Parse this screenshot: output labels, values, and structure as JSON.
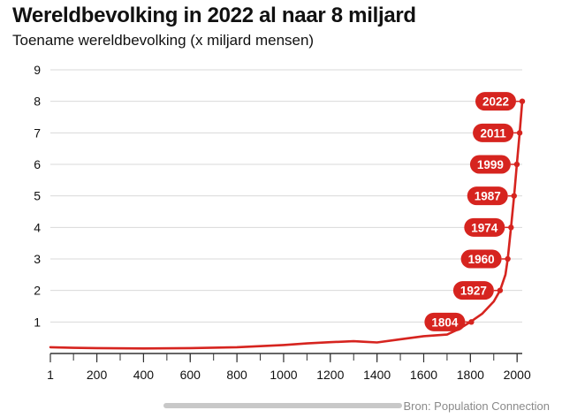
{
  "header": {
    "title": "Wereldbevolking in 2022 al naar 8 miljard",
    "subtitle": "Toename wereldbevolking (x miljard mensen)"
  },
  "footer": {
    "source": "Bron: Population Connection"
  },
  "colors": {
    "line": "#d6241f",
    "label_bg": "#d6241f",
    "label_text": "#ffffff",
    "grid": "#d9d9d9",
    "axis": "#333333"
  },
  "chart_data": {
    "type": "line",
    "title": "Wereldbevolking in 2022 al naar 8 miljard",
    "subtitle": "Toename wereldbevolking (x miljard mensen)",
    "xlabel": "",
    "ylabel": "",
    "xlim": [
      1,
      2022
    ],
    "ylim": [
      0,
      9
    ],
    "grid": true,
    "x_ticks": [
      1,
      200,
      400,
      600,
      800,
      1000,
      1200,
      1400,
      1600,
      1800,
      2000
    ],
    "y_ticks": [
      1,
      2,
      3,
      4,
      5,
      6,
      7,
      8,
      9
    ],
    "series": [
      {
        "x": [
          1,
          100,
          200,
          400,
          600,
          800,
          1000,
          1100,
          1200,
          1300,
          1350,
          1400,
          1500,
          1600,
          1700,
          1750,
          1800,
          1850,
          1900,
          1927,
          1950,
          1960,
          1974,
          1987,
          1999,
          2011,
          2022
        ],
        "y": [
          0.2,
          0.18,
          0.17,
          0.16,
          0.17,
          0.2,
          0.27,
          0.32,
          0.36,
          0.39,
          0.37,
          0.35,
          0.45,
          0.55,
          0.6,
          0.77,
          1.0,
          1.26,
          1.65,
          2.0,
          2.5,
          3.0,
          4.0,
          5.0,
          6.0,
          7.0,
          8.0
        ]
      }
    ],
    "annotations": [
      {
        "label": "1804",
        "x": 1804,
        "y": 1
      },
      {
        "label": "1927",
        "x": 1927,
        "y": 2
      },
      {
        "label": "1960",
        "x": 1960,
        "y": 3
      },
      {
        "label": "1974",
        "x": 1974,
        "y": 4
      },
      {
        "label": "1987",
        "x": 1987,
        "y": 5
      },
      {
        "label": "1999",
        "x": 1999,
        "y": 6
      },
      {
        "label": "2011",
        "x": 2011,
        "y": 7
      },
      {
        "label": "2022",
        "x": 2022,
        "y": 8
      }
    ]
  }
}
